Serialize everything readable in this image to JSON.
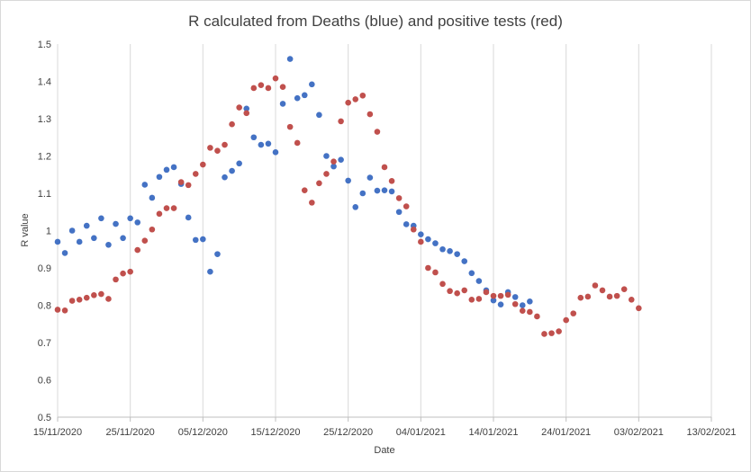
{
  "chart_data": {
    "type": "scatter",
    "title": "R calculated from Deaths (blue) and positive tests (red)",
    "xlabel": "Date",
    "ylabel": "R value",
    "x_type": "date",
    "xlim": [
      "2020-11-15",
      "2021-02-13"
    ],
    "ylim": [
      0.5,
      1.5
    ],
    "y_ticks": [
      "0.5",
      "0.6",
      "0.7",
      "0.8",
      "0.9",
      "1",
      "1.1",
      "1.2",
      "1.3",
      "1.4",
      "1.5"
    ],
    "x_tick_labels": [
      "15/11/2020",
      "25/11/2020",
      "05/12/2020",
      "15/12/2020",
      "25/12/2020",
      "04/01/2021",
      "14/01/2021",
      "24/01/2021",
      "03/02/2021",
      "13/02/2021"
    ],
    "grid": "vertical",
    "legend": "none",
    "series": [
      {
        "color": "#4472C4",
        "points": [
          [
            "2020-11-15",
            0.97
          ],
          [
            "2020-11-16",
            0.94
          ],
          [
            "2020-11-17",
            1.0
          ],
          [
            "2020-11-18",
            0.97
          ],
          [
            "2020-11-19",
            1.013
          ],
          [
            "2020-11-20",
            0.98
          ],
          [
            "2020-11-21",
            1.033
          ],
          [
            "2020-11-22",
            0.962
          ],
          [
            "2020-11-23",
            1.018
          ],
          [
            "2020-11-24",
            0.98
          ],
          [
            "2020-11-25",
            1.033
          ],
          [
            "2020-11-26",
            1.022
          ],
          [
            "2020-11-27",
            1.123
          ],
          [
            "2020-11-28",
            1.088
          ],
          [
            "2020-11-29",
            1.144
          ],
          [
            "2020-11-30",
            1.163
          ],
          [
            "2020-12-01",
            1.17
          ],
          [
            "2020-12-02",
            1.125
          ],
          [
            "2020-12-03",
            1.035
          ],
          [
            "2020-12-04",
            0.975
          ],
          [
            "2020-12-05",
            0.977
          ],
          [
            "2020-12-06",
            0.89
          ],
          [
            "2020-12-07",
            0.937
          ],
          [
            "2020-12-08",
            1.143
          ],
          [
            "2020-12-09",
            1.16
          ],
          [
            "2020-12-10",
            1.18
          ],
          [
            "2020-12-11",
            1.327
          ],
          [
            "2020-12-12",
            1.25
          ],
          [
            "2020-12-13",
            1.23
          ],
          [
            "2020-12-14",
            1.233
          ],
          [
            "2020-12-15",
            1.21
          ],
          [
            "2020-12-16",
            1.34
          ],
          [
            "2020-12-17",
            1.46
          ],
          [
            "2020-12-18",
            1.355
          ],
          [
            "2020-12-19",
            1.363
          ],
          [
            "2020-12-20",
            1.392
          ],
          [
            "2020-12-21",
            1.31
          ],
          [
            "2020-12-22",
            1.2
          ],
          [
            "2020-12-23",
            1.172
          ],
          [
            "2020-12-24",
            1.19
          ],
          [
            "2020-12-25",
            1.134
          ],
          [
            "2020-12-26",
            1.063
          ],
          [
            "2020-12-27",
            1.1
          ],
          [
            "2020-12-28",
            1.142
          ],
          [
            "2020-12-29",
            1.107
          ],
          [
            "2020-12-30",
            1.108
          ],
          [
            "2020-12-31",
            1.105
          ],
          [
            "2021-01-01",
            1.05
          ],
          [
            "2021-01-02",
            1.017
          ],
          [
            "2021-01-03",
            1.013
          ],
          [
            "2021-01-04",
            0.99
          ],
          [
            "2021-01-05",
            0.977
          ],
          [
            "2021-01-06",
            0.966
          ],
          [
            "2021-01-07",
            0.95
          ],
          [
            "2021-01-08",
            0.945
          ],
          [
            "2021-01-09",
            0.937
          ],
          [
            "2021-01-10",
            0.918
          ],
          [
            "2021-01-11",
            0.886
          ],
          [
            "2021-01-12",
            0.865
          ],
          [
            "2021-01-13",
            0.84
          ],
          [
            "2021-01-14",
            0.813
          ],
          [
            "2021-01-15",
            0.802
          ],
          [
            "2021-01-16",
            0.835
          ],
          [
            "2021-01-17",
            0.822
          ],
          [
            "2021-01-18",
            0.8
          ],
          [
            "2021-01-19",
            0.81
          ]
        ]
      },
      {
        "color": "#C0504D",
        "points": [
          [
            "2020-11-15",
            0.788
          ],
          [
            "2020-11-16",
            0.786
          ],
          [
            "2020-11-17",
            0.812
          ],
          [
            "2020-11-18",
            0.815
          ],
          [
            "2020-11-19",
            0.82
          ],
          [
            "2020-11-20",
            0.827
          ],
          [
            "2020-11-21",
            0.83
          ],
          [
            "2020-11-22",
            0.817
          ],
          [
            "2020-11-23",
            0.869
          ],
          [
            "2020-11-24",
            0.885
          ],
          [
            "2020-11-25",
            0.89
          ],
          [
            "2020-11-26",
            0.948
          ],
          [
            "2020-11-27",
            0.973
          ],
          [
            "2020-11-28",
            1.003
          ],
          [
            "2020-11-29",
            1.045
          ],
          [
            "2020-11-30",
            1.06
          ],
          [
            "2020-12-01",
            1.06
          ],
          [
            "2020-12-02",
            1.13
          ],
          [
            "2020-12-03",
            1.122
          ],
          [
            "2020-12-04",
            1.152
          ],
          [
            "2020-12-05",
            1.177
          ],
          [
            "2020-12-06",
            1.222
          ],
          [
            "2020-12-07",
            1.214
          ],
          [
            "2020-12-08",
            1.23
          ],
          [
            "2020-12-09",
            1.285
          ],
          [
            "2020-12-10",
            1.33
          ],
          [
            "2020-12-11",
            1.315
          ],
          [
            "2020-12-12",
            1.382
          ],
          [
            "2020-12-13",
            1.39
          ],
          [
            "2020-12-14",
            1.382
          ],
          [
            "2020-12-15",
            1.408
          ],
          [
            "2020-12-16",
            1.385
          ],
          [
            "2020-12-17",
            1.278
          ],
          [
            "2020-12-18",
            1.235
          ],
          [
            "2020-12-19",
            1.108
          ],
          [
            "2020-12-20",
            1.075
          ],
          [
            "2020-12-21",
            1.127
          ],
          [
            "2020-12-22",
            1.152
          ],
          [
            "2020-12-23",
            1.185
          ],
          [
            "2020-12-24",
            1.293
          ],
          [
            "2020-12-25",
            1.343
          ],
          [
            "2020-12-26",
            1.352
          ],
          [
            "2020-12-27",
            1.362
          ],
          [
            "2020-12-28",
            1.312
          ],
          [
            "2020-12-29",
            1.265
          ],
          [
            "2020-12-30",
            1.17
          ],
          [
            "2020-12-31",
            1.133
          ],
          [
            "2021-01-01",
            1.087
          ],
          [
            "2021-01-02",
            1.065
          ],
          [
            "2021-01-03",
            1.003
          ],
          [
            "2021-01-04",
            0.97
          ],
          [
            "2021-01-05",
            0.9
          ],
          [
            "2021-01-06",
            0.888
          ],
          [
            "2021-01-07",
            0.857
          ],
          [
            "2021-01-08",
            0.838
          ],
          [
            "2021-01-09",
            0.832
          ],
          [
            "2021-01-10",
            0.84
          ],
          [
            "2021-01-11",
            0.815
          ],
          [
            "2021-01-12",
            0.817
          ],
          [
            "2021-01-13",
            0.835
          ],
          [
            "2021-01-14",
            0.825
          ],
          [
            "2021-01-15",
            0.825
          ],
          [
            "2021-01-16",
            0.828
          ],
          [
            "2021-01-17",
            0.803
          ],
          [
            "2021-01-18",
            0.785
          ],
          [
            "2021-01-19",
            0.782
          ],
          [
            "2021-01-20",
            0.77
          ],
          [
            "2021-01-21",
            0.723
          ],
          [
            "2021-01-22",
            0.725
          ],
          [
            "2021-01-23",
            0.73
          ],
          [
            "2021-01-24",
            0.76
          ],
          [
            "2021-01-25",
            0.778
          ],
          [
            "2021-01-26",
            0.82
          ],
          [
            "2021-01-27",
            0.823
          ],
          [
            "2021-01-28",
            0.853
          ],
          [
            "2021-01-29",
            0.84
          ],
          [
            "2021-01-30",
            0.823
          ],
          [
            "2021-01-31",
            0.825
          ],
          [
            "2021-02-01",
            0.843
          ],
          [
            "2021-02-02",
            0.815
          ],
          [
            "2021-02-03",
            0.792
          ]
        ]
      }
    ]
  }
}
